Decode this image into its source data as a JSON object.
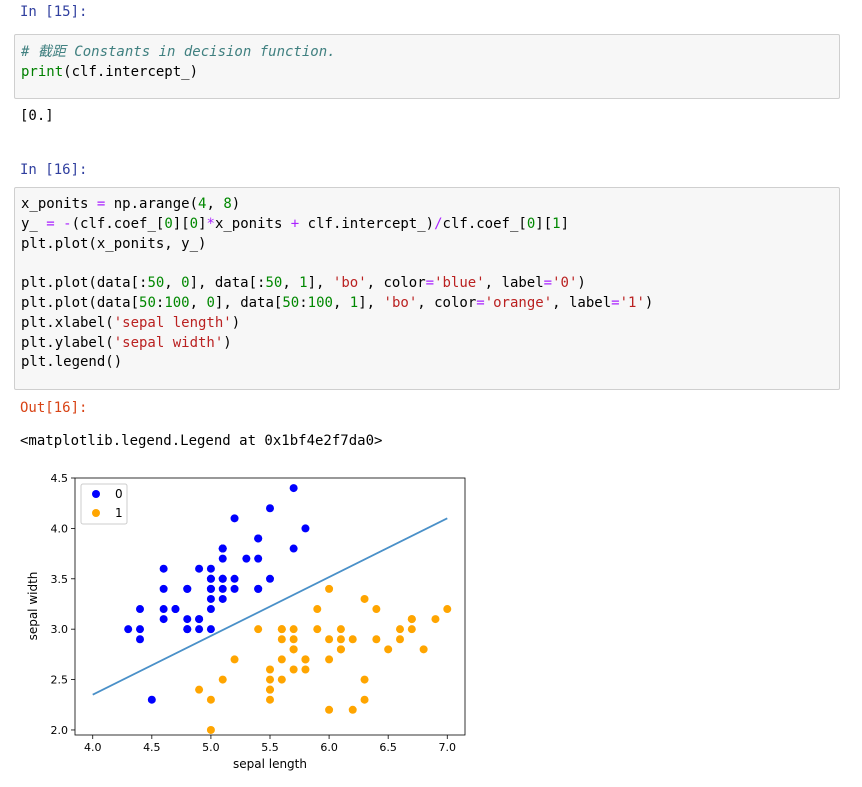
{
  "cell15": {
    "prompt": "In [15]:",
    "comment": "# 截距 Constants in decision function.",
    "print_kw": "print",
    "print_arg": "(clf.intercept_)",
    "output": "[0.]"
  },
  "cell16": {
    "prompt": "In [16]:",
    "out_prompt": "Out[16]:",
    "output": "<matplotlib.legend.Legend at 0x1bf4e2f7da0>",
    "lines": [
      [
        {
          "t": "x_ponits ",
          "c": ""
        },
        {
          "t": "=",
          "c": "op"
        },
        {
          "t": " np.arange(",
          "c": ""
        },
        {
          "t": "4",
          "c": "num"
        },
        {
          "t": ", ",
          "c": ""
        },
        {
          "t": "8",
          "c": "num"
        },
        {
          "t": ")",
          "c": ""
        }
      ],
      [
        {
          "t": "y_ ",
          "c": ""
        },
        {
          "t": "=",
          "c": "op"
        },
        {
          "t": " ",
          "c": ""
        },
        {
          "t": "-",
          "c": "op"
        },
        {
          "t": "(clf.coef_[",
          "c": ""
        },
        {
          "t": "0",
          "c": "num"
        },
        {
          "t": "][",
          "c": ""
        },
        {
          "t": "0",
          "c": "num"
        },
        {
          "t": "]",
          "c": ""
        },
        {
          "t": "*",
          "c": "op"
        },
        {
          "t": "x_ponits ",
          "c": ""
        },
        {
          "t": "+",
          "c": "op"
        },
        {
          "t": " clf.intercept_)",
          "c": ""
        },
        {
          "t": "/",
          "c": "op"
        },
        {
          "t": "clf.coef_[",
          "c": ""
        },
        {
          "t": "0",
          "c": "num"
        },
        {
          "t": "][",
          "c": ""
        },
        {
          "t": "1",
          "c": "num"
        },
        {
          "t": "]",
          "c": ""
        }
      ],
      [
        {
          "t": "plt.plot(x_ponits, y_)",
          "c": ""
        }
      ],
      [
        {
          "t": "",
          "c": ""
        }
      ],
      [
        {
          "t": "plt.plot(data[:",
          "c": ""
        },
        {
          "t": "50",
          "c": "num"
        },
        {
          "t": ", ",
          "c": ""
        },
        {
          "t": "0",
          "c": "num"
        },
        {
          "t": "], data[:",
          "c": ""
        },
        {
          "t": "50",
          "c": "num"
        },
        {
          "t": ", ",
          "c": ""
        },
        {
          "t": "1",
          "c": "num"
        },
        {
          "t": "], ",
          "c": ""
        },
        {
          "t": "'bo'",
          "c": "str"
        },
        {
          "t": ", color",
          "c": ""
        },
        {
          "t": "=",
          "c": "op"
        },
        {
          "t": "'blue'",
          "c": "str"
        },
        {
          "t": ", label",
          "c": ""
        },
        {
          "t": "=",
          "c": "op"
        },
        {
          "t": "'0'",
          "c": "str"
        },
        {
          "t": ")",
          "c": ""
        }
      ],
      [
        {
          "t": "plt.plot(data[",
          "c": ""
        },
        {
          "t": "50",
          "c": "num"
        },
        {
          "t": ":",
          "c": ""
        },
        {
          "t": "100",
          "c": "num"
        },
        {
          "t": ", ",
          "c": ""
        },
        {
          "t": "0",
          "c": "num"
        },
        {
          "t": "], data[",
          "c": ""
        },
        {
          "t": "50",
          "c": "num"
        },
        {
          "t": ":",
          "c": ""
        },
        {
          "t": "100",
          "c": "num"
        },
        {
          "t": ", ",
          "c": ""
        },
        {
          "t": "1",
          "c": "num"
        },
        {
          "t": "], ",
          "c": ""
        },
        {
          "t": "'bo'",
          "c": "str"
        },
        {
          "t": ", color",
          "c": ""
        },
        {
          "t": "=",
          "c": "op"
        },
        {
          "t": "'orange'",
          "c": "str"
        },
        {
          "t": ", label",
          "c": ""
        },
        {
          "t": "=",
          "c": "op"
        },
        {
          "t": "'1'",
          "c": "str"
        },
        {
          "t": ")",
          "c": ""
        }
      ],
      [
        {
          "t": "plt.xlabel(",
          "c": ""
        },
        {
          "t": "'sepal length'",
          "c": "str"
        },
        {
          "t": ")",
          "c": ""
        }
      ],
      [
        {
          "t": "plt.ylabel(",
          "c": ""
        },
        {
          "t": "'sepal width'",
          "c": "str"
        },
        {
          "t": ")",
          "c": ""
        }
      ],
      [
        {
          "t": "plt.legend()",
          "c": ""
        }
      ]
    ]
  },
  "chart_data": {
    "type": "scatter",
    "xlabel": "sepal length",
    "ylabel": "sepal width",
    "xlim": [
      3.85,
      7.15
    ],
    "ylim": [
      1.95,
      4.5
    ],
    "xticks": [
      "4.0",
      "4.5",
      "5.0",
      "5.5",
      "6.0",
      "6.5",
      "7.0"
    ],
    "yticks": [
      "2.0",
      "2.5",
      "3.0",
      "3.5",
      "4.0",
      "4.5"
    ],
    "xtick_values": [
      4.0,
      4.5,
      5.0,
      5.5,
      6.0,
      6.5,
      7.0
    ],
    "ytick_values": [
      2.0,
      2.5,
      3.0,
      3.5,
      4.0,
      4.5
    ],
    "legend_position": "top-left",
    "grid": false,
    "line": {
      "x": [
        4,
        7
      ],
      "y": [
        2.35,
        4.1
      ],
      "color": "#4a90c8"
    },
    "series": [
      {
        "name": "0",
        "color": "#0000ff",
        "points": [
          [
            5.1,
            3.5
          ],
          [
            4.9,
            3.0
          ],
          [
            4.7,
            3.2
          ],
          [
            4.6,
            3.1
          ],
          [
            5.0,
            3.6
          ],
          [
            5.4,
            3.9
          ],
          [
            4.6,
            3.4
          ],
          [
            5.0,
            3.4
          ],
          [
            4.4,
            2.9
          ],
          [
            4.9,
            3.1
          ],
          [
            5.4,
            3.7
          ],
          [
            4.8,
            3.4
          ],
          [
            4.8,
            3.0
          ],
          [
            4.3,
            3.0
          ],
          [
            5.8,
            4.0
          ],
          [
            5.7,
            4.4
          ],
          [
            5.4,
            3.9
          ],
          [
            5.1,
            3.5
          ],
          [
            5.7,
            3.8
          ],
          [
            5.1,
            3.8
          ],
          [
            5.4,
            3.4
          ],
          [
            5.1,
            3.7
          ],
          [
            4.6,
            3.6
          ],
          [
            5.1,
            3.3
          ],
          [
            4.8,
            3.4
          ],
          [
            5.0,
            3.0
          ],
          [
            5.0,
            3.4
          ],
          [
            5.2,
            3.5
          ],
          [
            5.2,
            3.4
          ],
          [
            4.7,
            3.2
          ],
          [
            4.8,
            3.1
          ],
          [
            5.4,
            3.4
          ],
          [
            5.2,
            4.1
          ],
          [
            5.5,
            4.2
          ],
          [
            4.9,
            3.1
          ],
          [
            5.0,
            3.2
          ],
          [
            5.5,
            3.5
          ],
          [
            4.9,
            3.6
          ],
          [
            4.4,
            3.0
          ],
          [
            5.1,
            3.4
          ],
          [
            5.0,
            3.5
          ],
          [
            4.5,
            2.3
          ],
          [
            4.4,
            3.2
          ],
          [
            5.0,
            3.5
          ],
          [
            5.1,
            3.8
          ],
          [
            4.8,
            3.0
          ],
          [
            5.1,
            3.8
          ],
          [
            4.6,
            3.2
          ],
          [
            5.3,
            3.7
          ],
          [
            5.0,
            3.3
          ]
        ]
      },
      {
        "name": "1",
        "color": "#ffa500",
        "points": [
          [
            7.0,
            3.2
          ],
          [
            6.4,
            3.2
          ],
          [
            6.9,
            3.1
          ],
          [
            5.5,
            2.3
          ],
          [
            6.5,
            2.8
          ],
          [
            5.7,
            2.8
          ],
          [
            6.3,
            3.3
          ],
          [
            4.9,
            2.4
          ],
          [
            6.6,
            2.9
          ],
          [
            5.2,
            2.7
          ],
          [
            5.0,
            2.0
          ],
          [
            5.9,
            3.0
          ],
          [
            6.0,
            2.2
          ],
          [
            6.1,
            2.9
          ],
          [
            5.6,
            2.9
          ],
          [
            6.7,
            3.1
          ],
          [
            5.6,
            3.0
          ],
          [
            5.8,
            2.7
          ],
          [
            6.2,
            2.2
          ],
          [
            5.6,
            2.5
          ],
          [
            5.9,
            3.2
          ],
          [
            6.1,
            2.8
          ],
          [
            6.3,
            2.5
          ],
          [
            6.1,
            2.8
          ],
          [
            6.4,
            2.9
          ],
          [
            6.6,
            3.0
          ],
          [
            6.8,
            2.8
          ],
          [
            6.7,
            3.0
          ],
          [
            6.0,
            2.9
          ],
          [
            5.7,
            2.6
          ],
          [
            5.5,
            2.4
          ],
          [
            5.5,
            2.4
          ],
          [
            5.8,
            2.7
          ],
          [
            6.0,
            2.7
          ],
          [
            5.4,
            3.0
          ],
          [
            6.0,
            3.4
          ],
          [
            6.7,
            3.1
          ],
          [
            6.3,
            2.3
          ],
          [
            5.6,
            3.0
          ],
          [
            5.5,
            2.5
          ],
          [
            5.5,
            2.6
          ],
          [
            6.1,
            3.0
          ],
          [
            5.8,
            2.6
          ],
          [
            5.0,
            2.3
          ],
          [
            5.6,
            2.7
          ],
          [
            5.7,
            3.0
          ],
          [
            5.7,
            2.9
          ],
          [
            6.2,
            2.9
          ],
          [
            5.1,
            2.5
          ],
          [
            5.7,
            2.8
          ]
        ]
      }
    ]
  }
}
